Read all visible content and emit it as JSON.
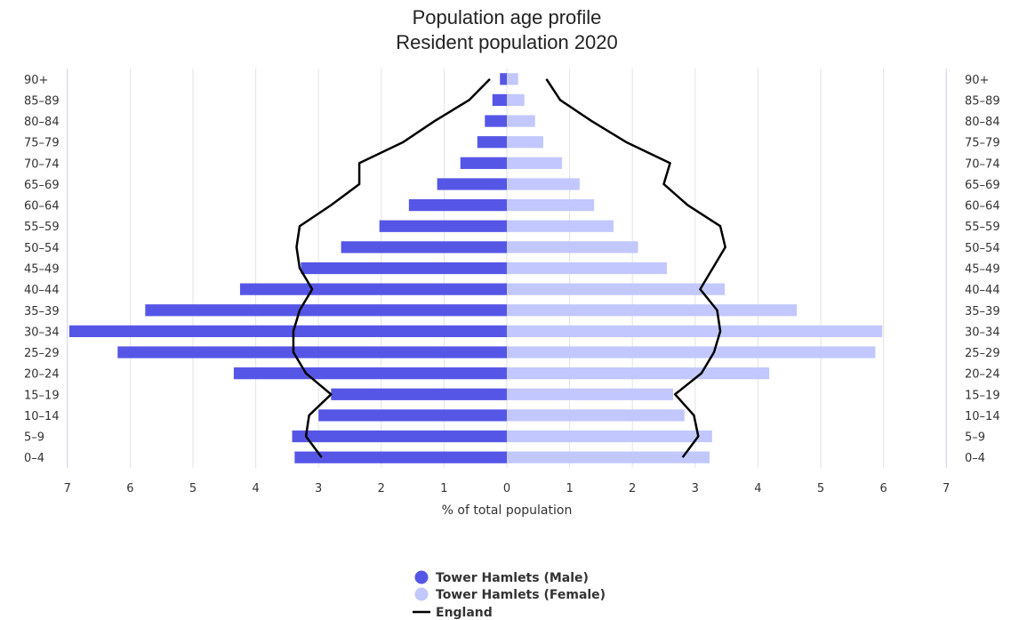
{
  "chart_data": {
    "type": "bar",
    "orientation": "horizontal-population-pyramid",
    "title": "Population age profile",
    "subtitle": "Resident population 2020",
    "xlabel": "% of total population",
    "xlim": [
      -7,
      7
    ],
    "x_ticks": [
      "7",
      "6",
      "5",
      "4",
      "3",
      "2",
      "1",
      "0",
      "1",
      "2",
      "3",
      "4",
      "5",
      "6",
      "7"
    ],
    "categories": [
      "0-4",
      "5-9",
      "10-14",
      "15-19",
      "20-24",
      "25-29",
      "30-34",
      "35-39",
      "40-44",
      "45-49",
      "50-54",
      "55-59",
      "60-64",
      "65-69",
      "70-74",
      "75-79",
      "80-84",
      "85-89",
      "90+"
    ],
    "series": [
      {
        "name": "Tower Hamlets (Male)",
        "color": "#5656e6",
        "kind": "bar",
        "side": "left",
        "values": [
          3.38,
          3.42,
          3.0,
          2.8,
          4.35,
          6.2,
          6.97,
          5.76,
          4.25,
          3.28,
          2.64,
          2.03,
          1.56,
          1.11,
          0.74,
          0.47,
          0.35,
          0.23,
          0.11
        ]
      },
      {
        "name": "Tower Hamlets (Female)",
        "color": "#c2c8fd",
        "kind": "bar",
        "side": "right",
        "values": [
          3.23,
          3.27,
          2.83,
          2.65,
          4.18,
          5.87,
          5.98,
          4.62,
          3.47,
          2.55,
          2.09,
          1.7,
          1.39,
          1.16,
          0.88,
          0.58,
          0.45,
          0.28,
          0.18
        ]
      },
      {
        "name": "England",
        "color": "#000000",
        "kind": "line",
        "male": [
          2.95,
          3.2,
          3.15,
          2.8,
          3.2,
          3.4,
          3.4,
          3.3,
          3.1,
          3.3,
          3.35,
          3.3,
          2.8,
          2.35,
          2.35,
          1.65,
          1.15,
          0.6,
          0.27
        ],
        "female": [
          2.8,
          3.05,
          2.98,
          2.68,
          3.1,
          3.3,
          3.4,
          3.35,
          3.08,
          3.28,
          3.48,
          3.4,
          2.88,
          2.5,
          2.6,
          1.9,
          1.35,
          0.85,
          0.63
        ]
      }
    ],
    "grid": true,
    "legend_position": "bottom-center"
  }
}
